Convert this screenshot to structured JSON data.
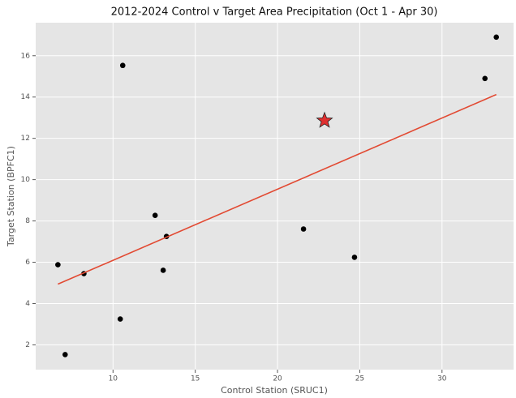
{
  "chart_data": {
    "type": "scatter",
    "title": "2012-2024 Control v Target Area Precipitation (Oct 1 - Apr 30)",
    "x_label": "Control Station (SRUC1)",
    "y_label": "Target Station (BPFC1)",
    "xlim": [
      5.3,
      34.35
    ],
    "ylim": [
      0.8,
      17.6
    ],
    "xticks": [
      10,
      15,
      20,
      25,
      30
    ],
    "yticks": [
      2,
      4,
      6,
      8,
      10,
      12,
      14,
      16
    ],
    "grid": true,
    "series": [
      {
        "type": "scatter",
        "marker": "circle",
        "color": "#000000",
        "x": [
          6.65,
          7.09,
          8.23,
          10.59,
          10.44,
          12.56,
          13.25,
          13.05,
          21.58,
          24.68,
          32.61,
          33.3
        ],
        "values": [
          5.88,
          1.53,
          5.45,
          15.53,
          3.25,
          8.27,
          7.25,
          5.61,
          7.61,
          6.24,
          14.9,
          16.9
        ]
      },
      {
        "type": "line",
        "color": "#e24a33",
        "x": [
          6.65,
          33.3
        ],
        "values": [
          4.94,
          14.12
        ]
      },
      {
        "type": "scatter",
        "marker": "star",
        "color": "#e03030",
        "x": [
          22.86
        ],
        "values": [
          12.86
        ]
      }
    ]
  }
}
